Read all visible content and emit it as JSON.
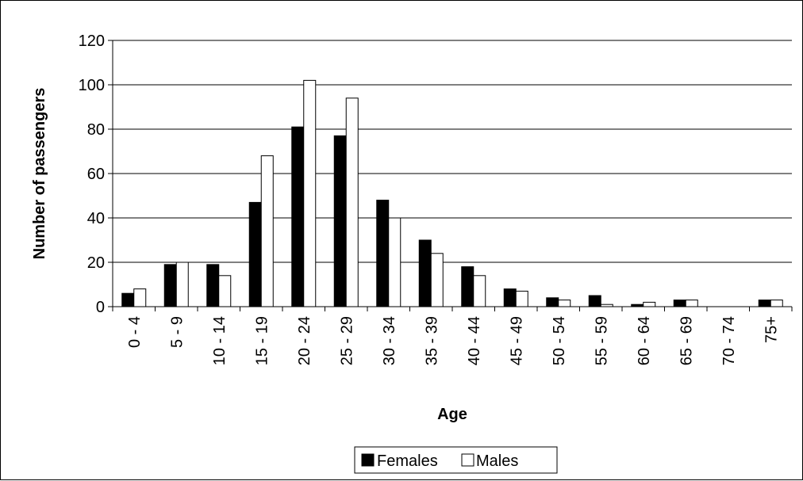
{
  "chart_data": {
    "type": "bar",
    "title": "",
    "xlabel": "Age",
    "ylabel": "Number of passengers",
    "categories": [
      "0 - 4",
      "5 - 9",
      "10 - 14",
      "15 - 19",
      "20 - 24",
      "25 - 29",
      "30 - 34",
      "35 - 39",
      "40 - 44",
      "45 - 49",
      "50 - 54",
      "55 - 59",
      "60 - 64",
      "65 - 69",
      "70 - 74",
      "75+"
    ],
    "series": [
      {
        "name": "Females",
        "color": "#000000",
        "values": [
          6,
          19,
          19,
          47,
          81,
          77,
          48,
          30,
          18,
          8,
          4,
          5,
          1,
          3,
          0,
          3
        ]
      },
      {
        "name": "Males",
        "color": "#ffffff",
        "values": [
          8,
          20,
          14,
          68,
          102,
          94,
          40,
          24,
          14,
          7,
          3,
          1,
          2,
          3,
          0,
          3
        ]
      }
    ],
    "ylim": [
      0,
      120
    ],
    "yticks": [
      0,
      20,
      40,
      60,
      80,
      100,
      120
    ],
    "grid": true,
    "legend": "bottom"
  }
}
